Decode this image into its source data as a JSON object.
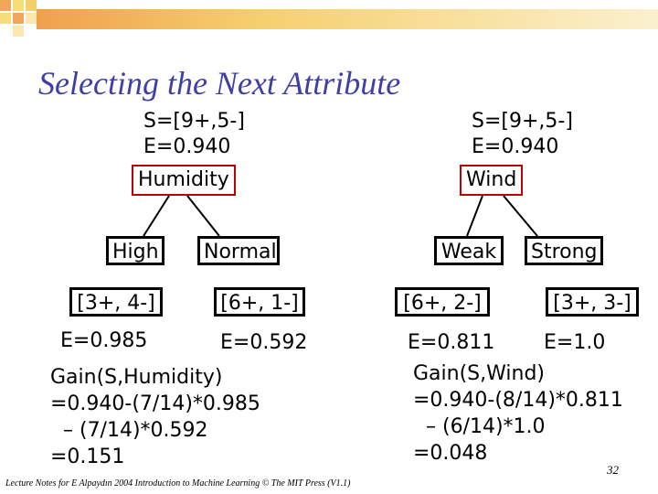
{
  "title": "Selecting the Next Attribute",
  "left_tree": {
    "s_line": "S=[9+,5-]",
    "e_line": "E=0.940",
    "attribute": "Humidity",
    "branches": [
      {
        "label": "High",
        "counts": "[3+, 4-]",
        "entropy": "E=0.985"
      },
      {
        "label": "Normal",
        "counts": "[6+, 1-]",
        "entropy": "E=0.592"
      }
    ],
    "gain": [
      "Gain(S,Humidity)",
      "=0.940-(7/14)*0.985",
      "  – (7/14)*0.592",
      "=0.151"
    ]
  },
  "right_tree": {
    "s_line": "S=[9+,5-]",
    "e_line": "E=0.940",
    "attribute": "Wind",
    "branches": [
      {
        "label": "Weak",
        "counts": "[6+, 2-]",
        "entropy": "E=0.811"
      },
      {
        "label": "Strong",
        "counts": "[3+, 3-]",
        "entropy": "E=1.0"
      }
    ],
    "gain": [
      "Gain(S,Wind)",
      "=0.940-(8/14)*0.811",
      "  – (6/14)*1.0",
      "=0.048"
    ]
  },
  "footer": "Lecture Notes for E Alpaydın 2004 Introduction to Machine Learning © The MIT Press (V1.1)",
  "page_number": "32",
  "colors": {
    "title": "#3f3fa8",
    "attribute_border": "#c00000",
    "header_orange": "#f2a65a",
    "header_yellow": "#f7dc7a"
  }
}
